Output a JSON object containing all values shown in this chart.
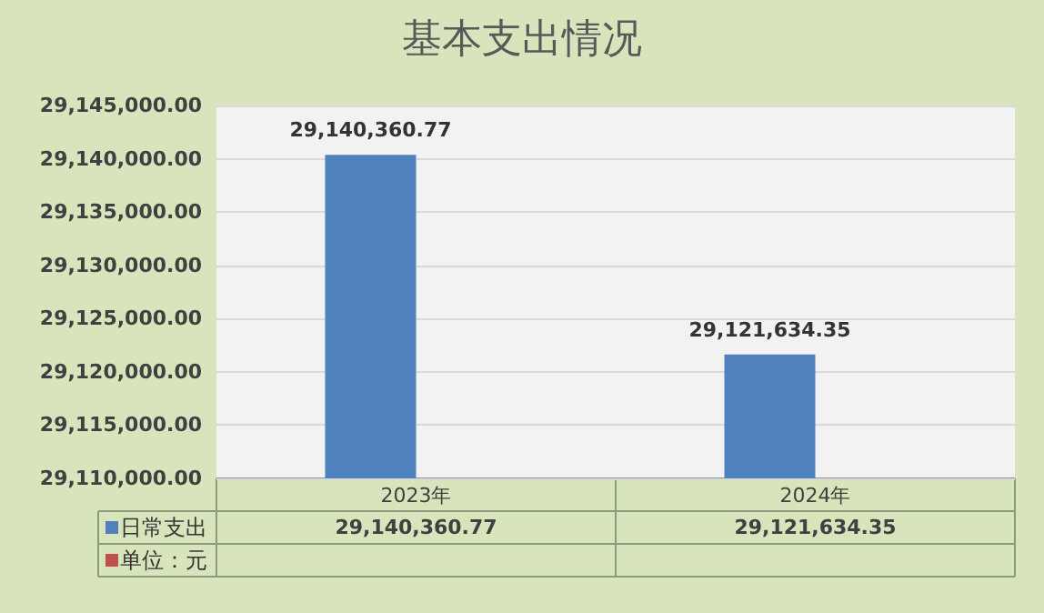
{
  "chart_data": {
    "type": "bar",
    "title": "基本支出情况",
    "categories": [
      "2023年",
      "2024年"
    ],
    "series": [
      {
        "name": "日常支出",
        "color": "#4f81bd",
        "values": [
          29140360.77,
          29121634.35
        ],
        "value_labels": [
          "29,140,360.77",
          "29,121,634.35"
        ]
      },
      {
        "name": "单位：元",
        "color": "#c0504d",
        "values": [
          null,
          null
        ]
      }
    ],
    "ylim": [
      29110000,
      29145000
    ],
    "yticks": [
      {
        "value": 29110000,
        "label": "29,110,000.00"
      },
      {
        "value": 29115000,
        "label": "29,115,000.00"
      },
      {
        "value": 29120000,
        "label": "29,120,000.00"
      },
      {
        "value": 29125000,
        "label": "29,125,000.00"
      },
      {
        "value": 29130000,
        "label": "29,130,000.00"
      },
      {
        "value": 29135000,
        "label": "29,135,000.00"
      },
      {
        "value": 29140000,
        "label": "29,140,000.00"
      },
      {
        "value": 29145000,
        "label": "29,145,000.00"
      }
    ],
    "grid": "y",
    "legend": "bottom"
  }
}
